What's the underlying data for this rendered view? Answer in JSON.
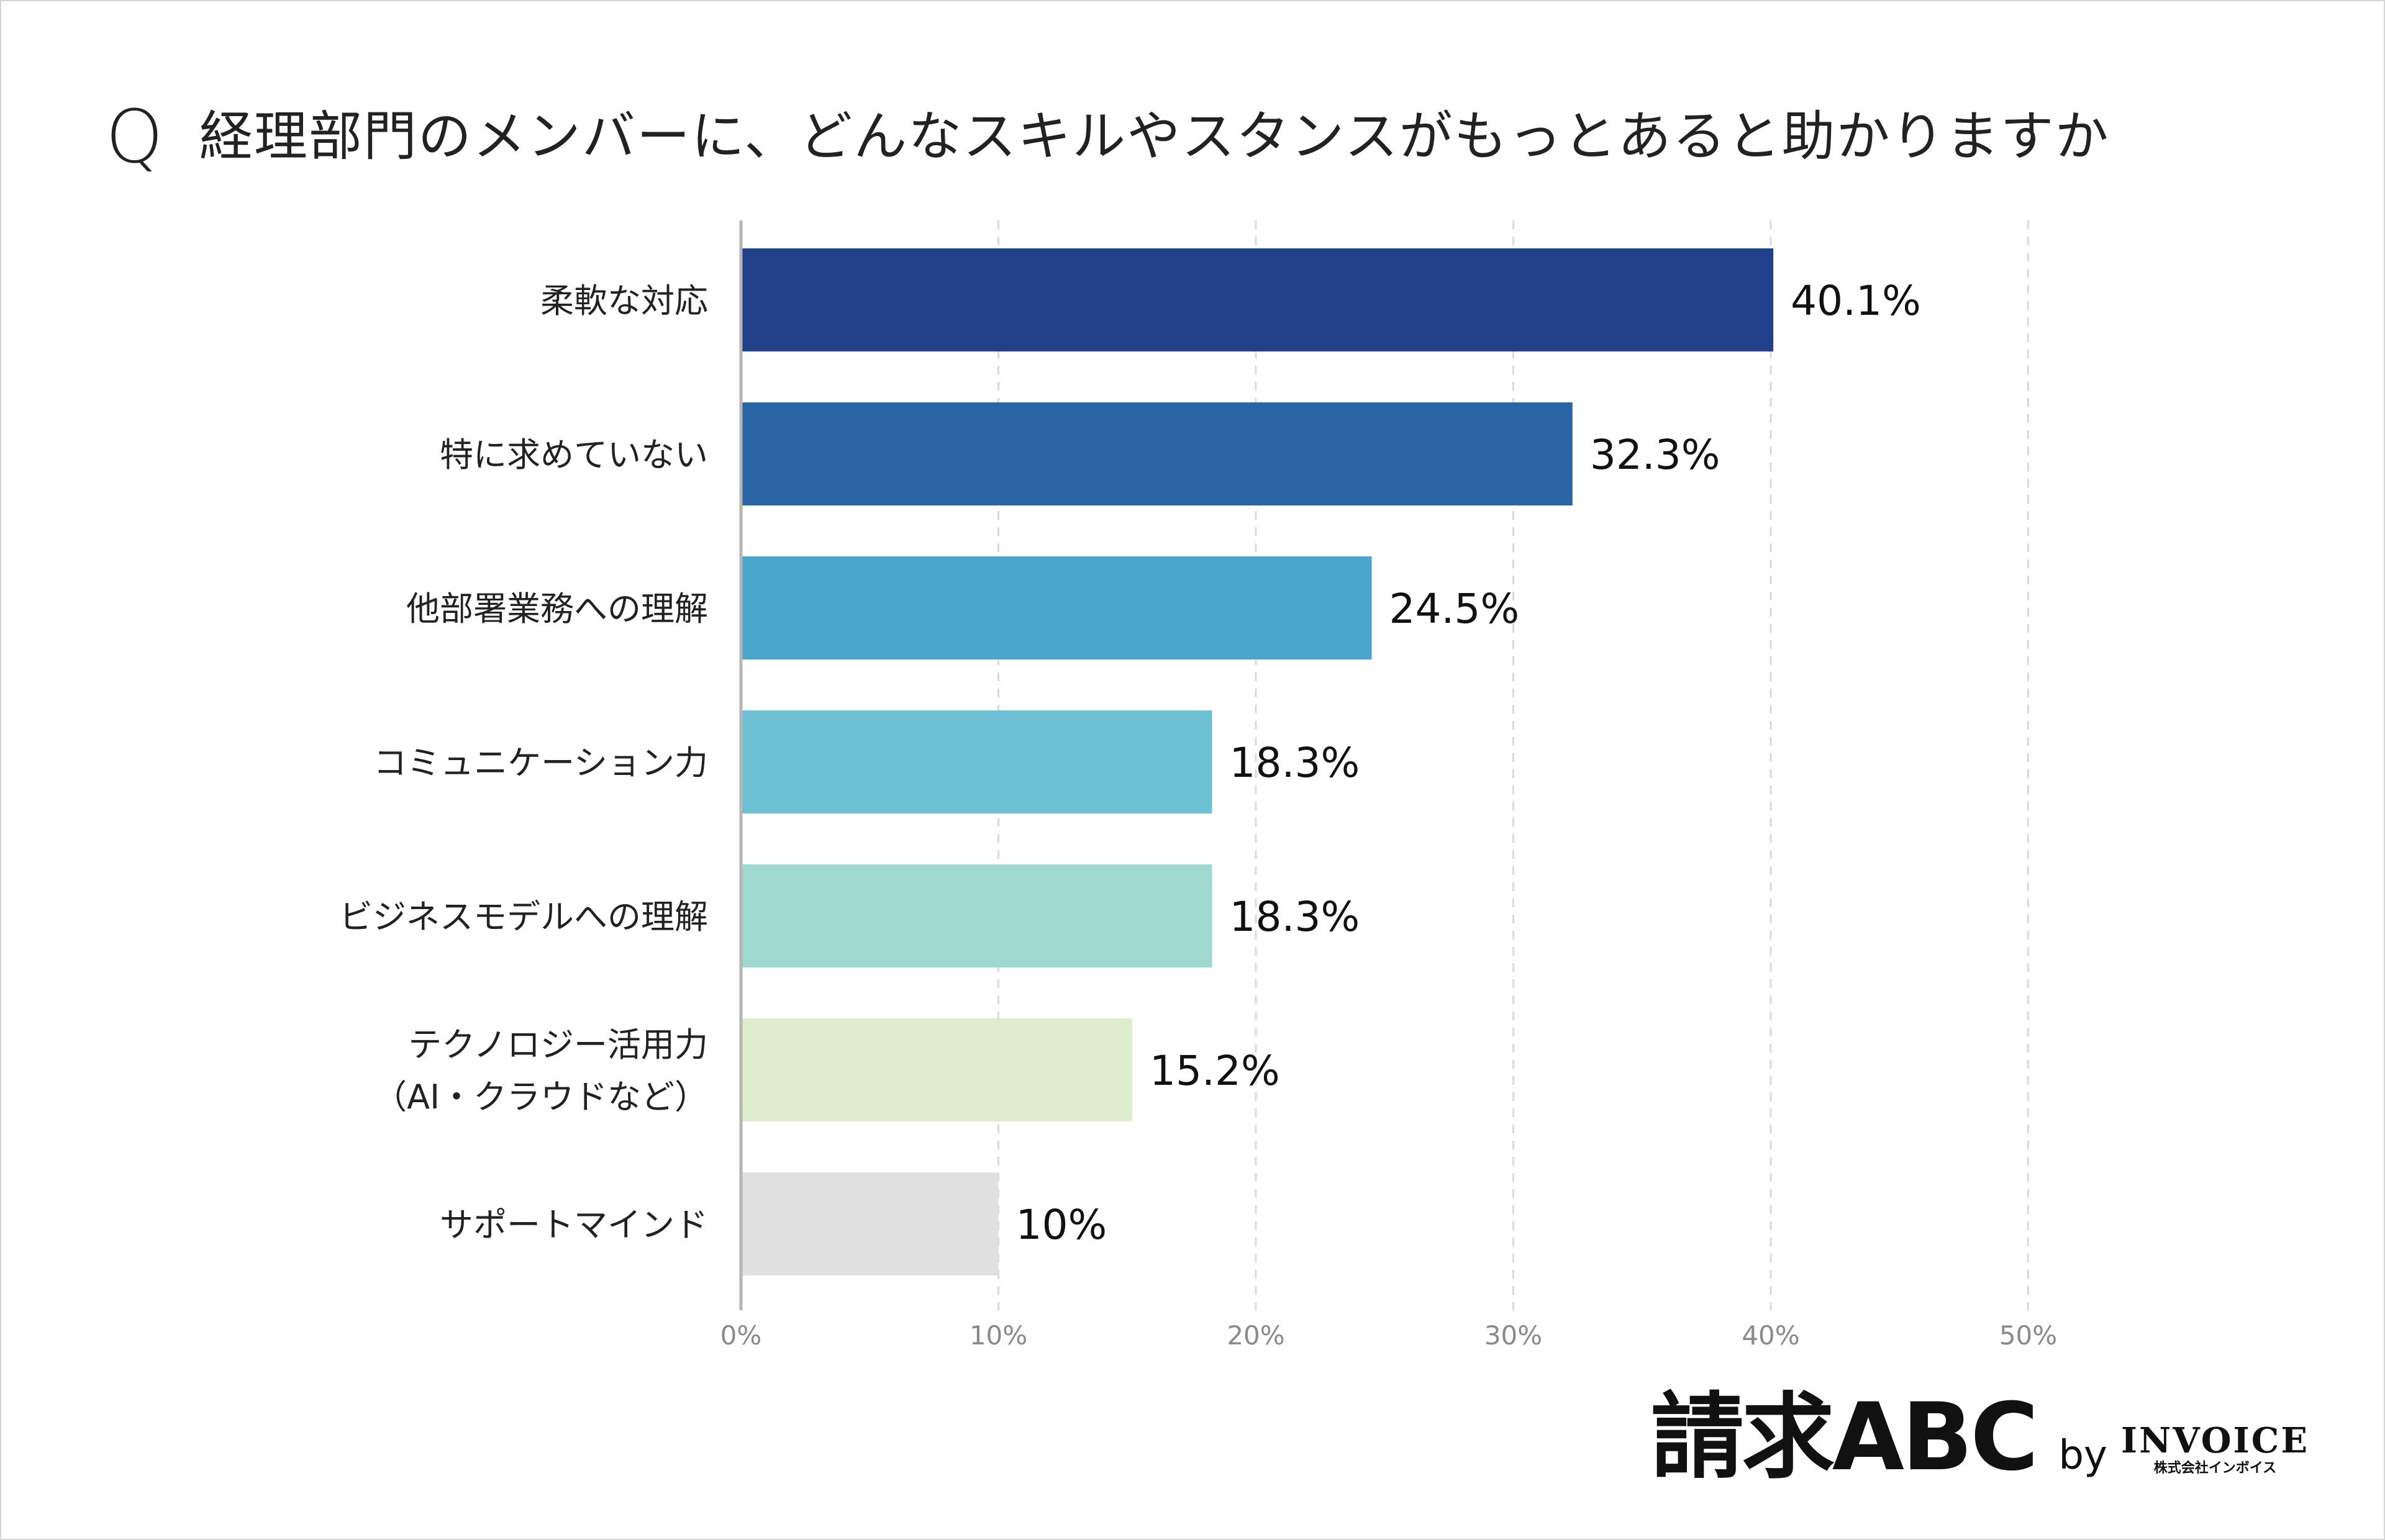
{
  "title": {
    "q_mark": "Q",
    "text": "経理部門のメンバーに、どんなスキルやスタンスがもっとあると助かりますか"
  },
  "chart_data": {
    "type": "bar",
    "orientation": "horizontal",
    "title": "経理部門のメンバーに、どんなスキルやスタンスがもっとあると助かりますか",
    "categories": [
      [
        "柔軟な対応"
      ],
      [
        "特に求めていない"
      ],
      [
        "他部署業務への理解"
      ],
      [
        "コミュニケーション力"
      ],
      [
        "ビジネスモデルへの理解"
      ],
      [
        "テクノロジー活用力",
        "（AI・クラウドなど）"
      ],
      [
        "サポートマインド"
      ]
    ],
    "values": [
      40.1,
      32.3,
      24.5,
      18.3,
      18.3,
      15.2,
      10
    ],
    "value_labels": [
      "40.1%",
      "32.3%",
      "24.5%",
      "18.3%",
      "18.3%",
      "15.2%",
      "10%"
    ],
    "colors": [
      "#223f8a",
      "#2964a4",
      "#4aa6cd",
      "#6ec1d4",
      "#a0d9cf",
      "#deedcb",
      "#e0e0e0"
    ],
    "xlim": [
      0,
      50
    ],
    "x_ticks": [
      0,
      10,
      20,
      30,
      40,
      50
    ],
    "x_tick_labels": [
      "0%",
      "10%",
      "20%",
      "30%",
      "40%",
      "50%"
    ],
    "grid": "vertical dashed",
    "xlabel": "",
    "ylabel": ""
  },
  "logo": {
    "main": "請求ABC",
    "by": "by",
    "brand": "INVOICE",
    "company": "株式会社インボイス"
  }
}
